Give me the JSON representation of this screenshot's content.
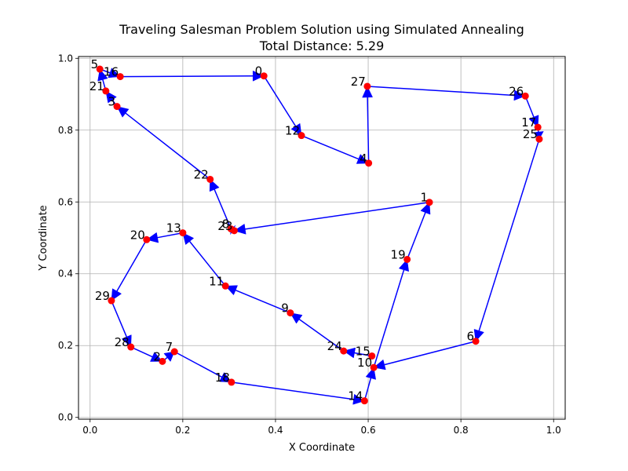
{
  "chart_data": {
    "type": "scatter",
    "title": "Traveling Salesman Problem Solution using Simulated Annealing",
    "subtitle": "Total Distance: 5.29",
    "xlabel": "X Coordinate",
    "ylabel": "Y Coordinate",
    "xlim": [
      -0.025,
      1.025
    ],
    "ylim": [
      -0.005,
      1.005
    ],
    "xticks": [
      0.0,
      0.2,
      0.4,
      0.6,
      0.8,
      1.0
    ],
    "yticks": [
      0.0,
      0.2,
      0.4,
      0.6,
      0.8,
      1.0
    ],
    "xtick_labels": [
      "0.0",
      "0.2",
      "0.4",
      "0.6",
      "0.8",
      "1.0"
    ],
    "ytick_labels": [
      "0.0",
      "0.2",
      "0.4",
      "0.6",
      "0.8",
      "1.0"
    ],
    "grid": true,
    "point_color": "#ff0000",
    "path_color": "#0000ff",
    "cities": [
      {
        "label": "0",
        "x": 0.375,
        "y": 0.951
      },
      {
        "label": "1",
        "x": 0.732,
        "y": 0.599
      },
      {
        "label": "2",
        "x": 0.156,
        "y": 0.156
      },
      {
        "label": "3",
        "x": 0.058,
        "y": 0.866
      },
      {
        "label": "4",
        "x": 0.601,
        "y": 0.708
      },
      {
        "label": "5",
        "x": 0.021,
        "y": 0.97
      },
      {
        "label": "6",
        "x": 0.832,
        "y": 0.212
      },
      {
        "label": "7",
        "x": 0.182,
        "y": 0.183
      },
      {
        "label": "8",
        "x": 0.304,
        "y": 0.525
      },
      {
        "label": "9",
        "x": 0.432,
        "y": 0.291
      },
      {
        "label": "10",
        "x": 0.612,
        "y": 0.139
      },
      {
        "label": "11",
        "x": 0.292,
        "y": 0.366
      },
      {
        "label": "12",
        "x": 0.456,
        "y": 0.785
      },
      {
        "label": "13",
        "x": 0.2,
        "y": 0.514
      },
      {
        "label": "14",
        "x": 0.592,
        "y": 0.046
      },
      {
        "label": "15",
        "x": 0.608,
        "y": 0.171
      },
      {
        "label": "16",
        "x": 0.065,
        "y": 0.949
      },
      {
        "label": "17",
        "x": 0.966,
        "y": 0.808
      },
      {
        "label": "18",
        "x": 0.305,
        "y": 0.098
      },
      {
        "label": "19",
        "x": 0.684,
        "y": 0.44
      },
      {
        "label": "20",
        "x": 0.122,
        "y": 0.495
      },
      {
        "label": "21",
        "x": 0.034,
        "y": 0.909
      },
      {
        "label": "22",
        "x": 0.259,
        "y": 0.663
      },
      {
        "label": "23",
        "x": 0.311,
        "y": 0.52
      },
      {
        "label": "24",
        "x": 0.547,
        "y": 0.185
      },
      {
        "label": "25",
        "x": 0.969,
        "y": 0.775
      },
      {
        "label": "26",
        "x": 0.939,
        "y": 0.895
      },
      {
        "label": "27",
        "x": 0.598,
        "y": 0.922
      },
      {
        "label": "28",
        "x": 0.088,
        "y": 0.196
      },
      {
        "label": "29",
        "x": 0.046,
        "y": 0.325
      }
    ],
    "tour": [
      0,
      12,
      4,
      27,
      26,
      17,
      25,
      6,
      10,
      19,
      1,
      23,
      8,
      22,
      3,
      21,
      5,
      16,
      0
    ],
    "tour_branch": [
      15,
      24,
      9,
      11,
      13,
      20,
      29,
      28,
      2,
      7,
      18,
      14,
      10
    ]
  }
}
